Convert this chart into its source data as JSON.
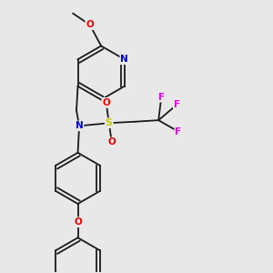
{
  "background_color": "#e8e8e8",
  "bond_color": "#1a1a1a",
  "atom_colors": {
    "N": "#0000cc",
    "O": "#ee0000",
    "S": "#cccc00",
    "F": "#ee00ee",
    "C": "#1a1a1a"
  },
  "bond_lw": 1.3,
  "font_size": 8,
  "dbl_off": 0.013
}
